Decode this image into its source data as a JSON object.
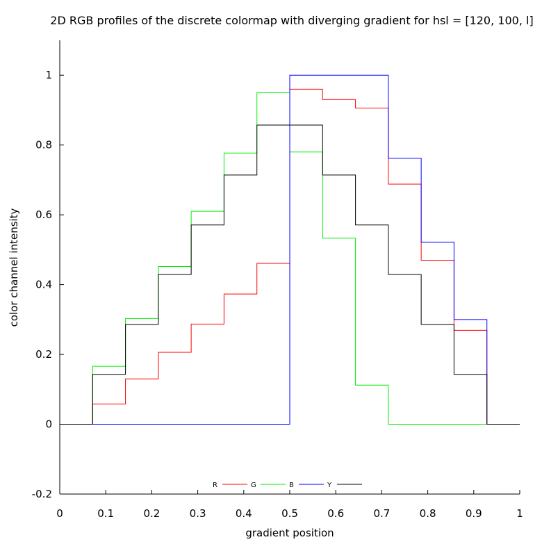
{
  "chart_data": {
    "type": "line",
    "title": "2D RGB profiles of the discrete colormap with diverging gradient for hsl = [120, 100, l]",
    "xlabel": "gradient position",
    "ylabel": "color channel intensity",
    "xlim": [
      0,
      1
    ],
    "ylim": [
      -0.2,
      1.1
    ],
    "xticks": [
      "0",
      "0.1",
      "0.2",
      "0.3",
      "0.4",
      "0.5",
      "0.6",
      "0.7",
      "0.8",
      "0.9",
      "1"
    ],
    "yticks": [
      "-0.2",
      "0",
      "0.2",
      "0.4",
      "0.6",
      "0.8",
      "1"
    ],
    "grid": false,
    "legend_position": "bottom-center",
    "step_edges": [
      0,
      0.0714,
      0.1429,
      0.2143,
      0.2857,
      0.3571,
      0.4286,
      0.5,
      0.5714,
      0.6429,
      0.7143,
      0.7857,
      0.8571,
      0.9286,
      1
    ],
    "series": [
      {
        "name": "R",
        "color": "#ff0000",
        "values": [
          0,
          0.058,
          0.13,
          0.206,
          0.287,
          0.373,
          0.461,
          0.96,
          0.93,
          0.906,
          0.688,
          0.47,
          0.269,
          0,
          0
        ]
      },
      {
        "name": "G",
        "color": "#00ee00",
        "values": [
          0,
          0.166,
          0.303,
          0.452,
          0.61,
          0.777,
          0.95,
          0.78,
          0.533,
          0.112,
          0,
          0,
          0,
          0,
          0
        ]
      },
      {
        "name": "B",
        "color": "#0000ff",
        "values": [
          0,
          0,
          0,
          0,
          0,
          0,
          0,
          1,
          1,
          1,
          0.762,
          0.522,
          0.3,
          0,
          0
        ]
      },
      {
        "name": "Y",
        "color": "#000000",
        "values": [
          0,
          0.143,
          0.286,
          0.429,
          0.571,
          0.714,
          0.857,
          0.857,
          0.714,
          0.571,
          0.429,
          0.286,
          0.143,
          0,
          0
        ]
      }
    ]
  }
}
